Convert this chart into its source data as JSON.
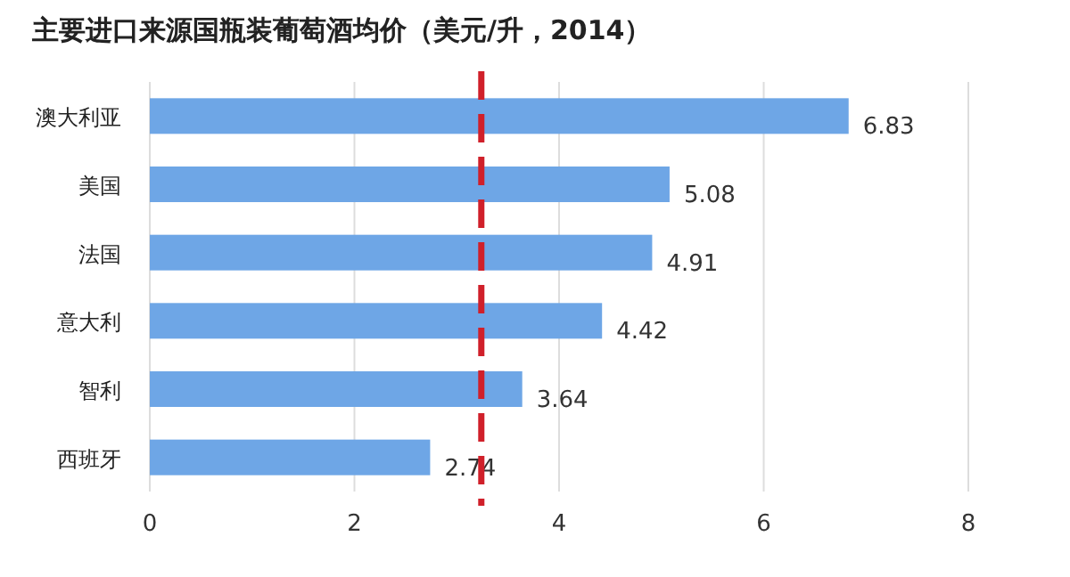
{
  "chart_data": {
    "type": "bar",
    "orientation": "horizontal",
    "title": "主要进口来源国瓶装葡萄酒均价（美元/升，2014）",
    "categories": [
      "澳大利亚",
      "美国",
      "法国",
      "意大利",
      "智利",
      "西班牙"
    ],
    "values": [
      6.83,
      5.08,
      4.91,
      4.42,
      3.64,
      2.74
    ],
    "color": "#6ea6e6",
    "data_labels": true,
    "xlim": [
      0,
      8
    ],
    "xticks": [
      0,
      2,
      4,
      6,
      8
    ],
    "grid": "x",
    "ref_lines": [
      {
        "axis": "x",
        "value": 3.24,
        "color": "#d0202a",
        "line_style": "dashed"
      }
    ]
  }
}
